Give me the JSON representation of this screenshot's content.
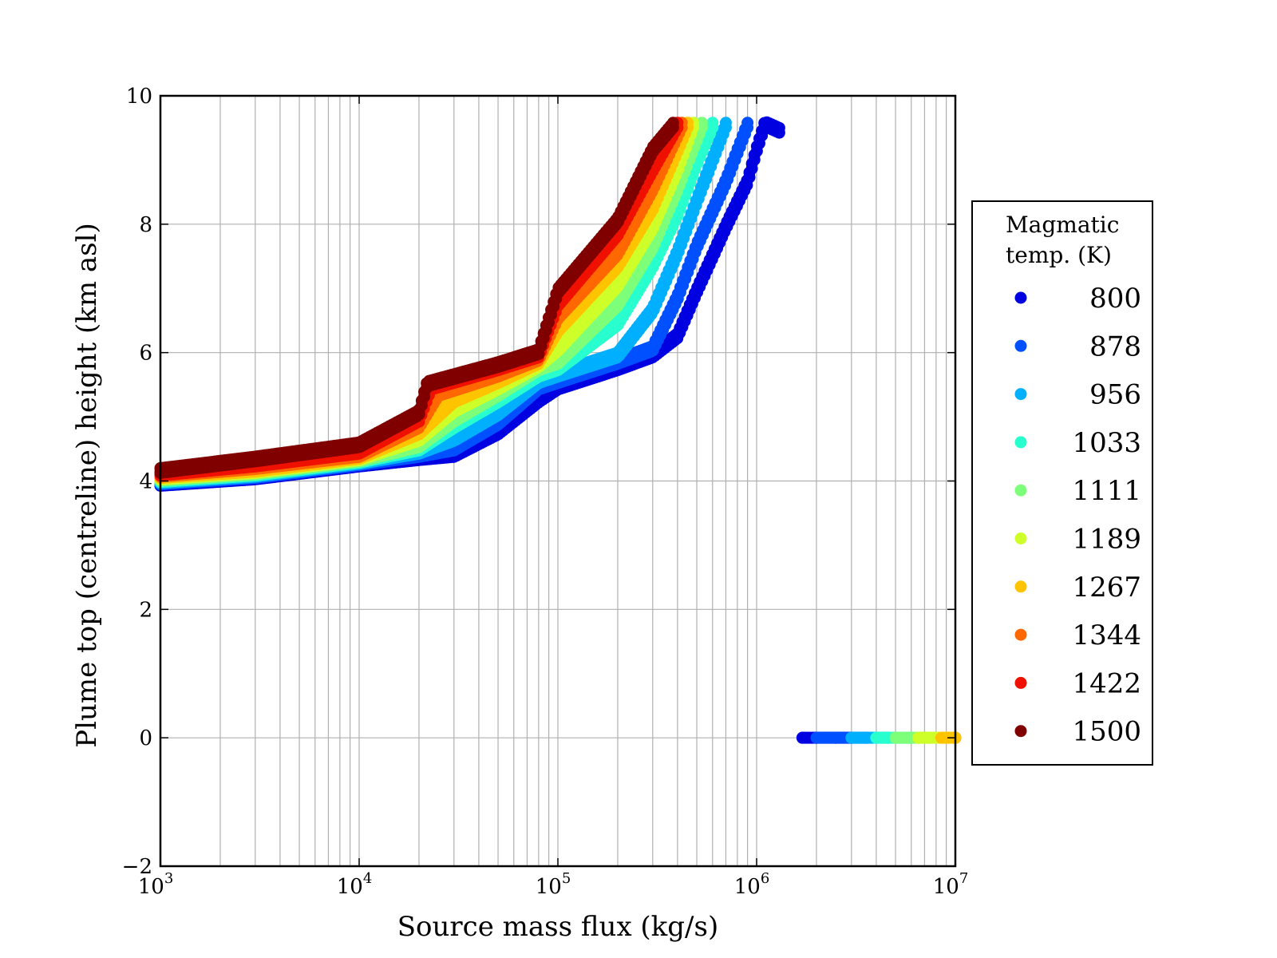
{
  "chart_data": {
    "type": "scatter",
    "xlabel": "Source mass flux (kg/s)",
    "ylabel": "Plume top (centreline) height (km asl)",
    "xscale": "log",
    "xlim": [
      1000,
      10000000
    ],
    "ylim": [
      -2,
      10
    ],
    "grid": true,
    "x_tick_labels": [
      {
        "base": "10",
        "exp": "3",
        "value": 1000
      },
      {
        "base": "10",
        "exp": "4",
        "value": 10000
      },
      {
        "base": "10",
        "exp": "5",
        "value": 100000
      },
      {
        "base": "10",
        "exp": "6",
        "value": 1000000
      },
      {
        "base": "10",
        "exp": "7",
        "value": 10000000
      }
    ],
    "y_tick_labels": [
      {
        "label": "−2",
        "value": -2
      },
      {
        "label": "0",
        "value": 0
      },
      {
        "label": "2",
        "value": 2
      },
      {
        "label": "4",
        "value": 4
      },
      {
        "label": "6",
        "value": 6
      },
      {
        "label": "8",
        "value": 8
      },
      {
        "label": "10",
        "value": 10
      }
    ],
    "legend": {
      "title_lines": [
        "Magmatic",
        "temp. (K)"
      ],
      "placement": "right, outside plot"
    },
    "series": [
      {
        "name": "800",
        "color": "#0000e0",
        "points": [
          [
            1000,
            4.0
          ],
          [
            3000,
            4.1
          ],
          [
            10000,
            4.3
          ],
          [
            20000,
            4.4
          ],
          [
            30000,
            4.45
          ],
          [
            50000,
            4.8
          ],
          [
            80000,
            5.3
          ],
          [
            100000,
            5.5
          ],
          [
            200000,
            5.8
          ],
          [
            300000,
            6.0
          ],
          [
            400000,
            6.3
          ],
          [
            500000,
            7.0
          ],
          [
            700000,
            8.0
          ],
          [
            900000,
            8.7
          ],
          [
            1000000,
            9.2
          ],
          [
            1100000,
            9.6
          ],
          [
            1300000,
            9.5
          ]
        ],
        "collapse_points": [
          [
            1700000,
            0
          ],
          [
            2000000,
            0
          ],
          [
            2500000,
            0
          ],
          [
            3000000,
            0
          ]
        ]
      },
      {
        "name": "878",
        "color": "#0050ff",
        "points": [
          [
            1000,
            4.02
          ],
          [
            3000,
            4.12
          ],
          [
            10000,
            4.32
          ],
          [
            20000,
            4.45
          ],
          [
            30000,
            4.55
          ],
          [
            50000,
            4.95
          ],
          [
            80000,
            5.5
          ],
          [
            100000,
            5.6
          ],
          [
            200000,
            5.9
          ],
          [
            300000,
            6.1
          ],
          [
            400000,
            6.9
          ],
          [
            500000,
            7.7
          ],
          [
            700000,
            8.7
          ],
          [
            900000,
            9.58
          ]
        ],
        "collapse_points": [
          [
            2000000,
            0
          ],
          [
            2500000,
            0
          ],
          [
            3000000,
            0
          ],
          [
            3600000,
            0
          ]
        ]
      },
      {
        "name": "956",
        "color": "#00b0ff",
        "points": [
          [
            1000,
            4.04
          ],
          [
            3000,
            4.14
          ],
          [
            10000,
            4.34
          ],
          [
            20000,
            4.5
          ],
          [
            30000,
            4.7
          ],
          [
            50000,
            5.1
          ],
          [
            80000,
            5.6
          ],
          [
            100000,
            5.7
          ],
          [
            200000,
            6.0
          ],
          [
            300000,
            6.7
          ],
          [
            400000,
            7.6
          ],
          [
            500000,
            8.4
          ],
          [
            700000,
            9.58
          ]
        ],
        "collapse_points": [
          [
            3000000,
            0
          ],
          [
            3500000,
            0
          ],
          [
            4000000,
            0
          ],
          [
            4600000,
            0
          ]
        ]
      },
      {
        "name": "1033",
        "color": "#29ffce",
        "points": [
          [
            1000,
            4.06
          ],
          [
            3000,
            4.16
          ],
          [
            10000,
            4.36
          ],
          [
            20000,
            4.55
          ],
          [
            30000,
            4.9
          ],
          [
            50000,
            5.3
          ],
          [
            80000,
            5.7
          ],
          [
            100000,
            5.8
          ],
          [
            200000,
            6.5
          ],
          [
            300000,
            7.4
          ],
          [
            400000,
            8.2
          ],
          [
            500000,
            9.0
          ],
          [
            600000,
            9.58
          ]
        ],
        "collapse_points": [
          [
            4000000,
            0
          ],
          [
            4600000,
            0
          ],
          [
            5300000,
            0
          ],
          [
            6000000,
            0
          ]
        ]
      },
      {
        "name": "1111",
        "color": "#7dff7a",
        "points": [
          [
            1000,
            4.08
          ],
          [
            3000,
            4.18
          ],
          [
            10000,
            4.38
          ],
          [
            20000,
            4.6
          ],
          [
            30000,
            5.0
          ],
          [
            50000,
            5.4
          ],
          [
            80000,
            5.8
          ],
          [
            100000,
            5.9
          ],
          [
            200000,
            6.8
          ],
          [
            300000,
            7.7
          ],
          [
            400000,
            8.6
          ],
          [
            530000,
            9.58
          ]
        ],
        "collapse_points": [
          [
            5000000,
            0
          ],
          [
            5800000,
            0
          ],
          [
            6600000,
            0
          ],
          [
            7400000,
            0
          ]
        ]
      },
      {
        "name": "1189",
        "color": "#ceff29",
        "points": [
          [
            1000,
            4.1
          ],
          [
            3000,
            4.2
          ],
          [
            10000,
            4.4
          ],
          [
            20000,
            4.7
          ],
          [
            30000,
            5.15
          ],
          [
            50000,
            5.5
          ],
          [
            80000,
            5.85
          ],
          [
            100000,
            6.1
          ],
          [
            200000,
            7.1
          ],
          [
            300000,
            8.0
          ],
          [
            400000,
            8.9
          ],
          [
            480000,
            9.58
          ]
        ],
        "collapse_points": [
          [
            6500000,
            0
          ],
          [
            7400000,
            0
          ],
          [
            8300000,
            0
          ],
          [
            9000000,
            0
          ]
        ]
      },
      {
        "name": "1267",
        "color": "#ffc400",
        "points": [
          [
            1000,
            4.12
          ],
          [
            3000,
            4.22
          ],
          [
            10000,
            4.42
          ],
          [
            20000,
            4.8
          ],
          [
            30000,
            5.3
          ],
          [
            50000,
            5.6
          ],
          [
            80000,
            5.9
          ],
          [
            100000,
            6.4
          ],
          [
            200000,
            7.4
          ],
          [
            300000,
            8.3
          ],
          [
            400000,
            9.2
          ],
          [
            450000,
            9.58
          ]
        ],
        "collapse_points": [
          [
            8500000,
            0
          ],
          [
            9300000,
            0
          ],
          [
            10000000,
            0
          ]
        ]
      },
      {
        "name": "1344",
        "color": "#ff6800",
        "points": [
          [
            1000,
            4.14
          ],
          [
            3000,
            4.26
          ],
          [
            10000,
            4.45
          ],
          [
            20000,
            4.9
          ],
          [
            25000,
            5.4
          ],
          [
            50000,
            5.7
          ],
          [
            80000,
            5.95
          ],
          [
            100000,
            6.6
          ],
          [
            200000,
            7.6
          ],
          [
            300000,
            8.6
          ],
          [
            420000,
            9.58
          ]
        ],
        "collapse_points": [
          [
            10000000,
            0
          ]
        ]
      },
      {
        "name": "1422",
        "color": "#f01000",
        "points": [
          [
            1000,
            4.16
          ],
          [
            3000,
            4.3
          ],
          [
            10000,
            4.5
          ],
          [
            20000,
            5.0
          ],
          [
            23000,
            5.5
          ],
          [
            50000,
            5.8
          ],
          [
            80000,
            6.0
          ],
          [
            100000,
            6.8
          ],
          [
            200000,
            7.9
          ],
          [
            300000,
            8.9
          ],
          [
            400000,
            9.58
          ]
        ],
        "collapse_points": []
      },
      {
        "name": "1500",
        "color": "#800000",
        "points": [
          [
            1000,
            4.2
          ],
          [
            3000,
            4.38
          ],
          [
            10000,
            4.6
          ],
          [
            20000,
            5.1
          ],
          [
            22000,
            5.55
          ],
          [
            50000,
            5.85
          ],
          [
            80000,
            6.05
          ],
          [
            100000,
            7.0
          ],
          [
            200000,
            8.1
          ],
          [
            300000,
            9.2
          ],
          [
            380000,
            9.58
          ]
        ],
        "collapse_points": []
      }
    ]
  }
}
